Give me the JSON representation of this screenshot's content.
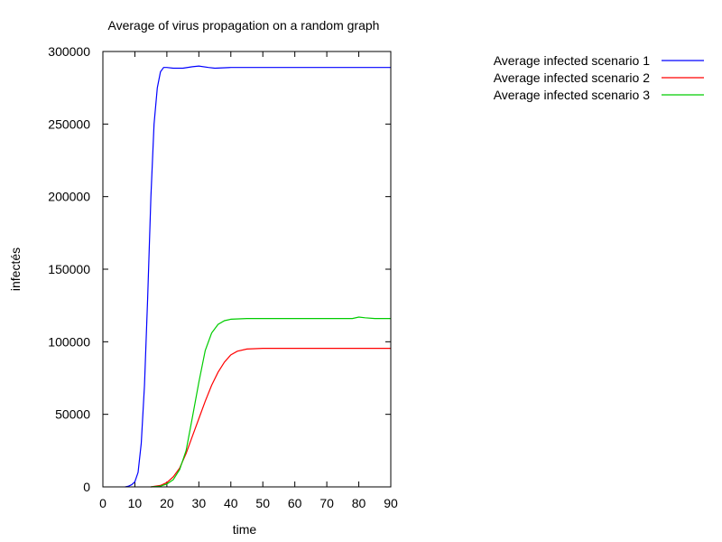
{
  "chart_data": {
    "type": "line",
    "title": "Average of virus propagation on a random graph",
    "xlabel": "time",
    "ylabel": "infectés",
    "xlim": [
      0,
      90
    ],
    "ylim": [
      0,
      300000
    ],
    "xticks": [
      0,
      10,
      20,
      30,
      40,
      50,
      60,
      70,
      80,
      90
    ],
    "yticks": [
      0,
      50000,
      100000,
      150000,
      200000,
      250000,
      300000
    ],
    "legend_position": "top-right, outside plot",
    "grid": false,
    "series": [
      {
        "name": "Average infected scenario 1",
        "color": "#0000ff",
        "points": [
          [
            7,
            0
          ],
          [
            8,
            500
          ],
          [
            9,
            1500
          ],
          [
            10,
            3500
          ],
          [
            11,
            10000
          ],
          [
            12,
            30000
          ],
          [
            13,
            70000
          ],
          [
            14,
            130000
          ],
          [
            15,
            200000
          ],
          [
            16,
            250000
          ],
          [
            17,
            275000
          ],
          [
            18,
            286000
          ],
          [
            19,
            289000
          ],
          [
            20,
            289000
          ],
          [
            22,
            288500
          ],
          [
            25,
            288500
          ],
          [
            28,
            289500
          ],
          [
            30,
            290000
          ],
          [
            33,
            289000
          ],
          [
            35,
            288500
          ],
          [
            40,
            289000
          ],
          [
            50,
            289000
          ],
          [
            60,
            289000
          ],
          [
            70,
            289000
          ],
          [
            80,
            289000
          ],
          [
            90,
            289000
          ]
        ]
      },
      {
        "name": "Average infected scenario 2",
        "color": "#ff0000",
        "points": [
          [
            15,
            0
          ],
          [
            18,
            1000
          ],
          [
            20,
            3000
          ],
          [
            22,
            7000
          ],
          [
            24,
            13000
          ],
          [
            26,
            23000
          ],
          [
            28,
            35000
          ],
          [
            30,
            47000
          ],
          [
            32,
            59000
          ],
          [
            34,
            70000
          ],
          [
            36,
            79000
          ],
          [
            38,
            86000
          ],
          [
            40,
            91000
          ],
          [
            42,
            93500
          ],
          [
            45,
            95000
          ],
          [
            50,
            95500
          ],
          [
            60,
            95500
          ],
          [
            70,
            95500
          ],
          [
            80,
            95500
          ],
          [
            90,
            95500
          ]
        ]
      },
      {
        "name": "Average infected scenario 3",
        "color": "#00cc00",
        "points": [
          [
            15,
            0
          ],
          [
            18,
            500
          ],
          [
            20,
            2000
          ],
          [
            22,
            5000
          ],
          [
            24,
            12000
          ],
          [
            26,
            25000
          ],
          [
            28,
            48000
          ],
          [
            30,
            72000
          ],
          [
            32,
            94000
          ],
          [
            34,
            106000
          ],
          [
            36,
            112000
          ],
          [
            38,
            114500
          ],
          [
            40,
            115500
          ],
          [
            45,
            116000
          ],
          [
            50,
            116000
          ],
          [
            60,
            116000
          ],
          [
            70,
            116000
          ],
          [
            78,
            116000
          ],
          [
            80,
            117000
          ],
          [
            82,
            116500
          ],
          [
            85,
            116000
          ],
          [
            90,
            116000
          ]
        ]
      }
    ]
  }
}
